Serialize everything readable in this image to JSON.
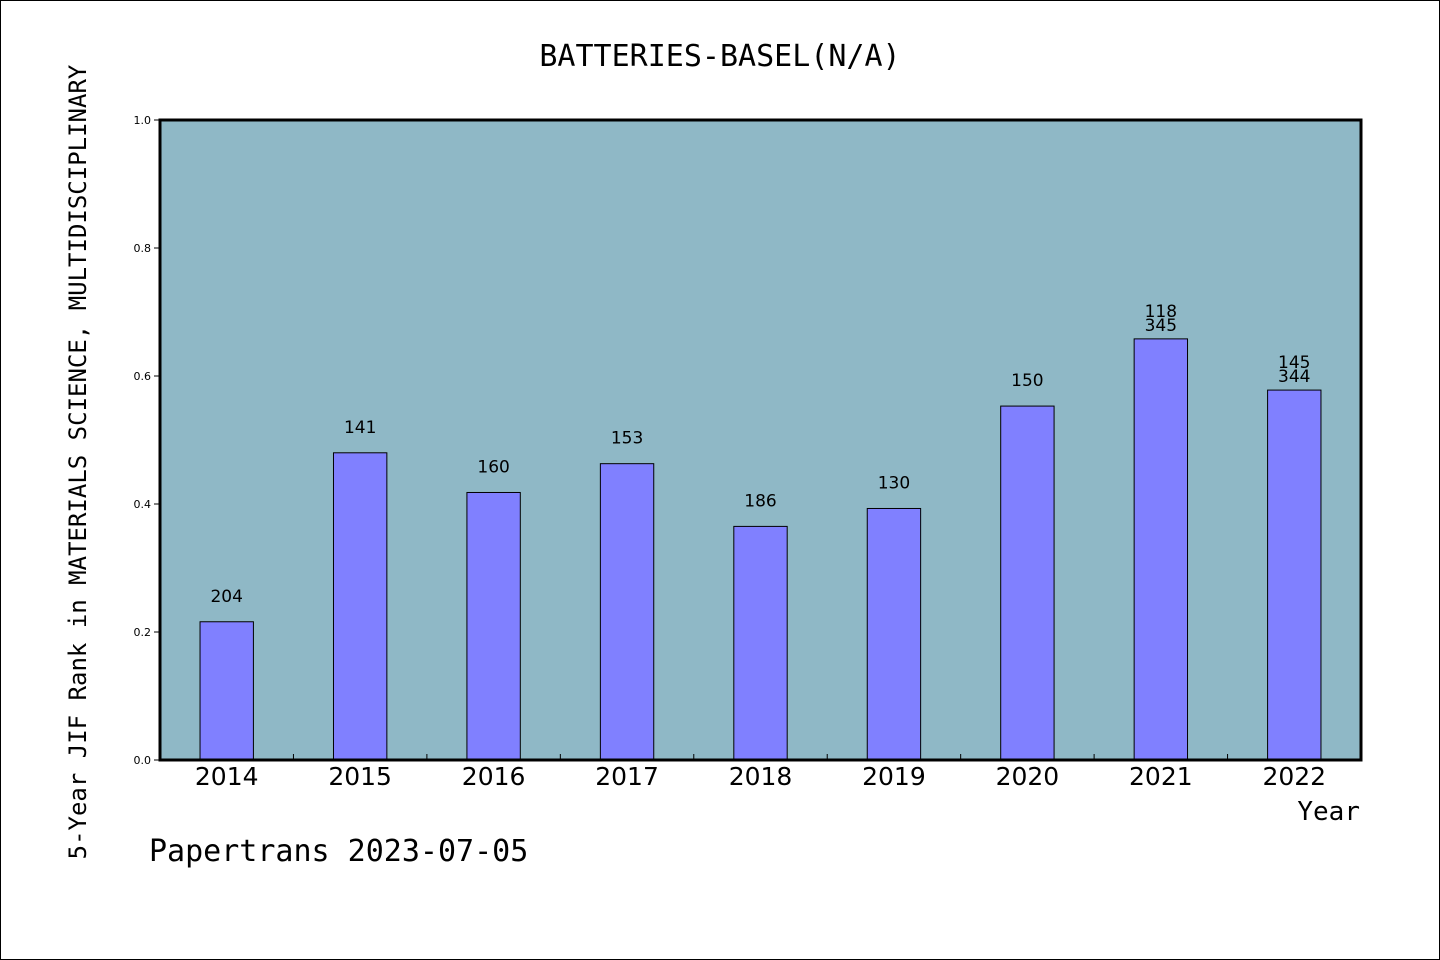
{
  "footer": {
    "note": "Papertrans 2023-07-05"
  },
  "colors": {
    "plot_bg": "#8fb8c6",
    "bar": "#8080ff",
    "bar_edge": "#000000",
    "text": "#000000"
  },
  "chart_data": {
    "type": "bar",
    "title": "BATTERIES-BASEL(N/A)",
    "xlabel": "Year",
    "ylabel": "5-Year JIF Rank in MATERIALS SCIENCE, MULTIDISCIPLINARY",
    "ylim": [
      0,
      1.0
    ],
    "yticks": [
      "0.0",
      "0.2",
      "0.4",
      "0.6",
      "0.8",
      "1.0"
    ],
    "grid": false,
    "categories": [
      "2014",
      "2015",
      "2016",
      "2017",
      "2018",
      "2019",
      "2020",
      "2021",
      "2022"
    ],
    "values": [
      0.216,
      0.48,
      0.418,
      0.463,
      0.365,
      0.393,
      0.553,
      0.658,
      0.578
    ],
    "labels": [
      [
        "204"
      ],
      [
        "141"
      ],
      [
        "160"
      ],
      [
        "153"
      ],
      [
        "186"
      ],
      [
        "130"
      ],
      [
        "150"
      ],
      [
        "118",
        "345"
      ],
      [
        "145",
        "344"
      ]
    ]
  }
}
